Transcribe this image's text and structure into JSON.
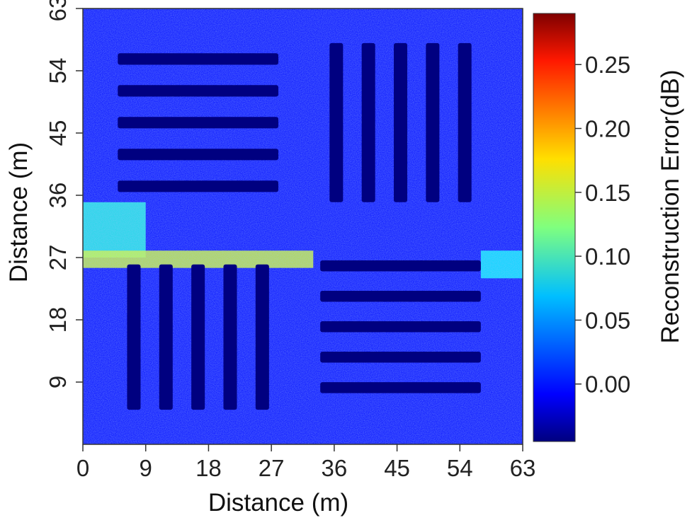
{
  "chart_data": {
    "type": "heatmap",
    "title": "",
    "xlabel": "Distance (m)",
    "ylabel": "Distance (m)",
    "xlim": [
      0,
      63
    ],
    "ylim": [
      0,
      63
    ],
    "xticks": [
      "0",
      "9",
      "18",
      "27",
      "36",
      "45",
      "54",
      "63"
    ],
    "yticks": [
      "9",
      "18",
      "27",
      "36",
      "45",
      "54",
      "63"
    ],
    "colorbar": {
      "label": "Reconstruction Error(dB)",
      "range": [
        -0.045,
        0.29
      ],
      "ticks": [
        "0.00",
        "0.05",
        "0.10",
        "0.15",
        "0.20",
        "0.25"
      ],
      "colormap": "jet"
    },
    "background_level": 0.0,
    "bar_level": -0.045,
    "bar_groups": [
      {
        "region": "top-left",
        "orientation": "horizontal",
        "count": 5,
        "x_range": [
          5,
          28
        ],
        "y_range": [
          35,
          58
        ]
      },
      {
        "region": "top-right",
        "orientation": "vertical",
        "count": 5,
        "x_range": [
          34,
          57
        ],
        "y_range": [
          35,
          58
        ]
      },
      {
        "region": "bottom-left",
        "orientation": "vertical",
        "count": 5,
        "x_range": [
          5,
          28
        ],
        "y_range": [
          5,
          26
        ]
      },
      {
        "region": "bottom-right",
        "orientation": "horizontal",
        "count": 5,
        "x_range": [
          34,
          57
        ],
        "y_range": [
          6,
          28
        ]
      }
    ],
    "high_error_regions": [
      {
        "x_range": [
          0,
          9
        ],
        "y_range": [
          27,
          35
        ],
        "value": 0.09
      },
      {
        "x_range": [
          0,
          33
        ],
        "y_range": [
          25.5,
          28
        ],
        "value": 0.15
      },
      {
        "x_range": [
          57,
          63
        ],
        "y_range": [
          24,
          28
        ],
        "value": 0.08
      }
    ]
  }
}
